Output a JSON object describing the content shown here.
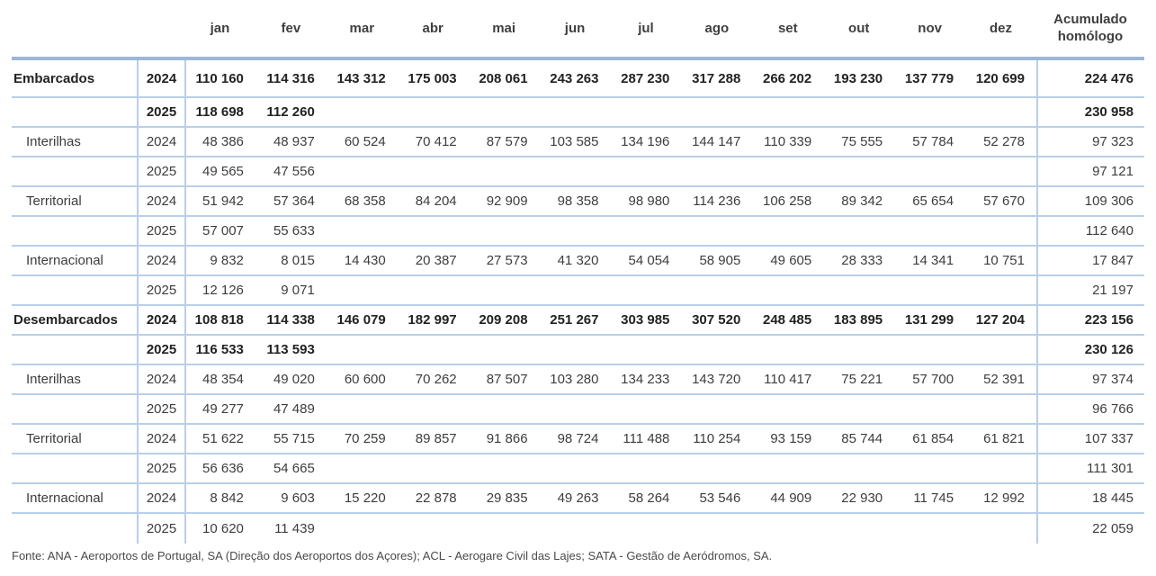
{
  "table": {
    "months": [
      "jan",
      "fev",
      "mar",
      "abr",
      "mai",
      "jun",
      "jul",
      "ago",
      "set",
      "out",
      "nov",
      "dez"
    ],
    "accumulated_header": [
      "Acumulado",
      "homólogo"
    ],
    "rows": [
      {
        "label": "Embarcados",
        "sub": false,
        "bold": true,
        "year": "2024",
        "values": [
          "110 160",
          "114 316",
          "143 312",
          "175 003",
          "208 061",
          "243 263",
          "287 230",
          "317 288",
          "266 202",
          "193 230",
          "137 779",
          "120 699"
        ],
        "acum": "224 476"
      },
      {
        "label": "",
        "sub": false,
        "bold": true,
        "year": "2025",
        "values": [
          "118 698",
          "112 260",
          "",
          "",
          "",
          "",
          "",
          "",
          "",
          "",
          "",
          ""
        ],
        "acum": "230 958"
      },
      {
        "label": "Interilhas",
        "sub": true,
        "bold": false,
        "year": "2024",
        "values": [
          "48 386",
          "48 937",
          "60 524",
          "70 412",
          "87 579",
          "103 585",
          "134 196",
          "144 147",
          "110 339",
          "75 555",
          "57 784",
          "52 278"
        ],
        "acum": "97 323"
      },
      {
        "label": "",
        "sub": true,
        "bold": false,
        "year": "2025",
        "values": [
          "49 565",
          "47 556",
          "",
          "",
          "",
          "",
          "",
          "",
          "",
          "",
          "",
          ""
        ],
        "acum": "97 121"
      },
      {
        "label": "Territorial",
        "sub": true,
        "bold": false,
        "year": "2024",
        "values": [
          "51 942",
          "57 364",
          "68 358",
          "84 204",
          "92 909",
          "98 358",
          "98 980",
          "114 236",
          "106 258",
          "89 342",
          "65 654",
          "57 670"
        ],
        "acum": "109 306"
      },
      {
        "label": "",
        "sub": true,
        "bold": false,
        "year": "2025",
        "values": [
          "57 007",
          "55 633",
          "",
          "",
          "",
          "",
          "",
          "",
          "",
          "",
          "",
          ""
        ],
        "acum": "112 640"
      },
      {
        "label": "Internacional",
        "sub": true,
        "bold": false,
        "year": "2024",
        "values": [
          "9 832",
          "8 015",
          "14 430",
          "20 387",
          "27 573",
          "41 320",
          "54 054",
          "58 905",
          "49 605",
          "28 333",
          "14 341",
          "10 751"
        ],
        "acum": "17 847"
      },
      {
        "label": "",
        "sub": true,
        "bold": false,
        "year": "2025",
        "values": [
          "12 126",
          "9 071",
          "",
          "",
          "",
          "",
          "",
          "",
          "",
          "",
          "",
          ""
        ],
        "acum": "21 197"
      },
      {
        "label": "Desembarcados",
        "sub": false,
        "bold": true,
        "year": "2024",
        "values": [
          "108 818",
          "114 338",
          "146 079",
          "182 997",
          "209 208",
          "251 267",
          "303 985",
          "307 520",
          "248 485",
          "183 895",
          "131 299",
          "127 204"
        ],
        "acum": "223 156"
      },
      {
        "label": "",
        "sub": false,
        "bold": true,
        "year": "2025",
        "values": [
          "116 533",
          "113 593",
          "",
          "",
          "",
          "",
          "",
          "",
          "",
          "",
          "",
          ""
        ],
        "acum": "230 126"
      },
      {
        "label": "Interilhas",
        "sub": true,
        "bold": false,
        "year": "2024",
        "values": [
          "48 354",
          "49 020",
          "60 600",
          "70 262",
          "87 507",
          "103 280",
          "134 233",
          "143 720",
          "110 417",
          "75 221",
          "57 700",
          "52 391"
        ],
        "acum": "97 374"
      },
      {
        "label": "",
        "sub": true,
        "bold": false,
        "year": "2025",
        "values": [
          "49 277",
          "47 489",
          "",
          "",
          "",
          "",
          "",
          "",
          "",
          "",
          "",
          ""
        ],
        "acum": "96 766"
      },
      {
        "label": "Territorial",
        "sub": true,
        "bold": false,
        "year": "2024",
        "values": [
          "51 622",
          "55 715",
          "70 259",
          "89 857",
          "91 866",
          "98 724",
          "111 488",
          "110 254",
          "93 159",
          "85 744",
          "61 854",
          "61 821"
        ],
        "acum": "107 337"
      },
      {
        "label": "",
        "sub": true,
        "bold": false,
        "year": "2025",
        "values": [
          "56 636",
          "54 665",
          "",
          "",
          "",
          "",
          "",
          "",
          "",
          "",
          "",
          ""
        ],
        "acum": "111 301"
      },
      {
        "label": "Internacional",
        "sub": true,
        "bold": false,
        "year": "2024",
        "values": [
          "8 842",
          "9 603",
          "15 220",
          "22 878",
          "29 835",
          "49 263",
          "58 264",
          "53 546",
          "44 909",
          "22 930",
          "11 745",
          "12 992"
        ],
        "acum": "18 445"
      },
      {
        "label": "",
        "sub": true,
        "bold": false,
        "year": "2025",
        "values": [
          "10 620",
          "11 439",
          "",
          "",
          "",
          "",
          "",
          "",
          "",
          "",
          "",
          ""
        ],
        "acum": "22 059"
      }
    ]
  },
  "footer": {
    "text": "Fonte: ANA - Aeroportos de Portugal, SA (Direção dos Aeroportos dos Açores); ACL - Aerogare Civil das Lajes; SATA - Gestão de Aeródromos, SA."
  },
  "colors": {
    "thick_rule": "#9db7d6",
    "thin_rule": "#b8cfe8",
    "text_regular": "#3d3d3d",
    "text_bold": "#222222"
  }
}
